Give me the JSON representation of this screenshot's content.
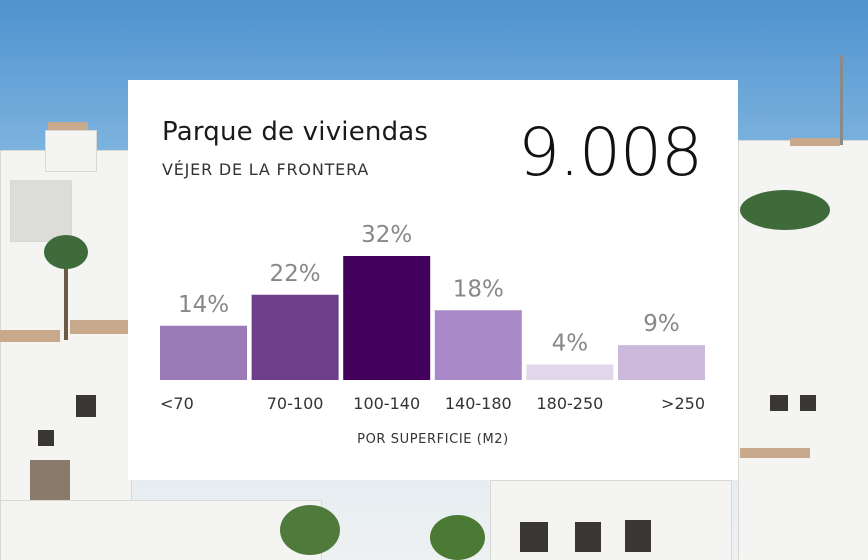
{
  "card": {
    "title": "Parque de viviendas",
    "subtitle": "VÉJER DE LA FRONTERA",
    "total": "9.008"
  },
  "chart_data": {
    "type": "bar",
    "categories": [
      "<70",
      "70-100",
      "100-140",
      "140-180",
      "180-250",
      ">250"
    ],
    "values": [
      14,
      22,
      32,
      18,
      4,
      9
    ],
    "value_labels": [
      "14%",
      "22%",
      "32%",
      "18%",
      "4%",
      "9%"
    ],
    "colors": [
      "#9b7ab8",
      "#6d3f8a",
      "#43005d",
      "#a989c7",
      "#e2d6ea",
      "#cdb9db"
    ],
    "title": "Parque de viviendas",
    "xlabel": "POR SUPERFICIE (M2)",
    "ylabel": "",
    "ylim": [
      0,
      32
    ],
    "grid": false,
    "label_color": "#888888",
    "tick_color": "#333333"
  }
}
